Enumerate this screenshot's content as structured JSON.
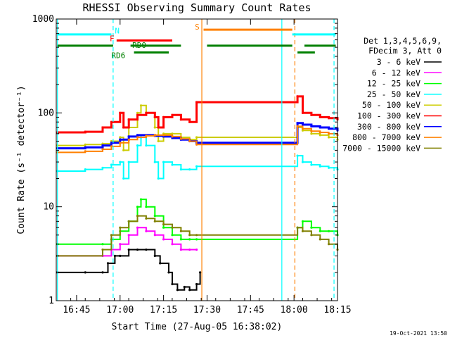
{
  "chart_data": {
    "type": "line",
    "title": "RHESSI Observing Summary Count Rates",
    "xlabel": "Start Time (27-Aug-05 16:38:02)",
    "ylabel": "Count Rate (s⁻¹ detector⁻¹)",
    "y_scale": "log",
    "ylim": [
      1,
      1000
    ],
    "xlim_minutes": [
      16.633,
      18.25
    ],
    "y_ticks": [
      {
        "value": 1,
        "label": "1"
      },
      {
        "value": 10,
        "label": "10"
      },
      {
        "value": 100,
        "label": "100"
      },
      {
        "value": 1000,
        "label": "1000"
      }
    ],
    "x_ticks": [
      {
        "value": 16.75,
        "label": "16:45"
      },
      {
        "value": 17.0,
        "label": "17:00"
      },
      {
        "value": 17.25,
        "label": "17:15"
      },
      {
        "value": 17.5,
        "label": "17:30"
      },
      {
        "value": 17.75,
        "label": "17:45"
      },
      {
        "value": 18.0,
        "label": "18:00"
      },
      {
        "value": 18.25,
        "label": "18:15"
      }
    ],
    "legend_header": [
      "Det 1,3,4,5,6,9,",
      "FDecim 3, Att 0"
    ],
    "series": [
      {
        "name": "3 - 6 keV",
        "color": "#000000",
        "x": [
          16.64,
          16.8,
          16.9,
          16.93,
          16.97,
          17.0,
          17.05,
          17.1,
          17.15,
          17.2,
          17.23,
          17.28,
          17.3,
          17.33,
          17.37,
          17.4,
          17.44,
          17.46
        ],
        "y": [
          2.0,
          2.0,
          2.0,
          2.5,
          3.0,
          3.0,
          3.5,
          3.5,
          3.5,
          3.0,
          2.5,
          2.0,
          1.5,
          1.3,
          1.4,
          1.3,
          1.5,
          2.0
        ]
      },
      {
        "name": "6 - 12 keV",
        "color": "#ff00ff",
        "x": [
          16.64,
          16.9,
          16.95,
          17.0,
          17.05,
          17.1,
          17.15,
          17.2,
          17.25,
          17.3,
          17.35,
          17.4,
          17.44
        ],
        "y": [
          3.0,
          3.0,
          3.5,
          4.0,
          5.0,
          6.0,
          5.5,
          5.0,
          4.5,
          4.0,
          3.5,
          3.5,
          3.5
        ]
      },
      {
        "name": "12 - 25 keV",
        "color": "#00ff00",
        "x": [
          16.64,
          16.9,
          16.95,
          17.0,
          17.05,
          17.1,
          17.12,
          17.15,
          17.2,
          17.25,
          17.3,
          17.35,
          17.4,
          17.44,
          18.02,
          18.05,
          18.1,
          18.15,
          18.2,
          18.25
        ],
        "y": [
          4.0,
          4.0,
          4.5,
          5.5,
          7.0,
          10.0,
          12.0,
          10.0,
          8.0,
          6.0,
          5.0,
          4.5,
          4.5,
          4.5,
          6.0,
          7.0,
          6.0,
          5.5,
          5.5,
          5.0
        ]
      },
      {
        "name": "25 - 50 keV",
        "color": "#00ffff",
        "x": [
          16.64,
          16.8,
          16.9,
          16.95,
          17.0,
          17.02,
          17.05,
          17.1,
          17.12,
          17.15,
          17.2,
          17.22,
          17.25,
          17.3,
          17.35,
          17.4,
          17.44,
          18.02,
          18.05,
          18.1,
          18.15,
          18.2,
          18.25
        ],
        "y": [
          24,
          25,
          26,
          28,
          30,
          20,
          30,
          45,
          55,
          45,
          30,
          20,
          30,
          28,
          25,
          25,
          27,
          35,
          30,
          28,
          27,
          26,
          25
        ]
      },
      {
        "name": "50 - 100 keV",
        "color": "#cccc00",
        "x": [
          16.64,
          16.8,
          16.9,
          16.95,
          17.0,
          17.02,
          17.05,
          17.1,
          17.12,
          17.15,
          17.2,
          17.22,
          17.25,
          17.3,
          17.35,
          17.4,
          17.44,
          18.02,
          18.05,
          18.1,
          18.15,
          18.2,
          18.25
        ],
        "y": [
          45,
          46,
          47,
          50,
          55,
          40,
          70,
          100,
          120,
          100,
          70,
          50,
          60,
          60,
          55,
          52,
          55,
          70,
          65,
          60,
          58,
          55,
          52
        ]
      },
      {
        "name": "100 - 300 keV",
        "color": "#ff0000",
        "x": [
          16.64,
          16.8,
          16.9,
          16.95,
          17.0,
          17.02,
          17.05,
          17.1,
          17.15,
          17.2,
          17.22,
          17.25,
          17.3,
          17.35,
          17.4,
          17.44,
          18.02,
          18.05,
          18.1,
          18.15,
          18.2,
          18.25
        ],
        "y": [
          62,
          63,
          70,
          80,
          100,
          70,
          85,
          95,
          100,
          90,
          70,
          90,
          95,
          85,
          80,
          130,
          150,
          100,
          95,
          90,
          88,
          85
        ]
      },
      {
        "name": "300 - 800 keV",
        "color": "#0000ff",
        "x": [
          16.64,
          16.8,
          16.9,
          16.95,
          17.0,
          17.05,
          17.1,
          17.15,
          17.2,
          17.25,
          17.3,
          17.35,
          17.4,
          17.44,
          18.02,
          18.05,
          18.1,
          18.15,
          18.2,
          18.25
        ],
        "y": [
          42,
          43,
          45,
          48,
          52,
          56,
          58,
          58,
          57,
          56,
          54,
          52,
          50,
          48,
          78,
          75,
          72,
          70,
          68,
          65
        ]
      },
      {
        "name": "800 - 7000 keV",
        "color": "#ff8000",
        "x": [
          16.64,
          16.8,
          16.9,
          16.95,
          17.0,
          17.05,
          17.1,
          17.15,
          17.2,
          17.25,
          17.3,
          17.35,
          17.4,
          17.44,
          18.02,
          18.05,
          18.1,
          18.15,
          18.2,
          18.25
        ],
        "y": [
          38,
          39,
          41,
          44,
          48,
          52,
          55,
          57,
          58,
          58,
          56,
          53,
          50,
          46,
          72,
          68,
          64,
          62,
          60,
          58
        ]
      },
      {
        "name": "7000 - 15000 keV",
        "color": "#808000",
        "x": [
          16.64,
          16.9,
          16.95,
          17.0,
          17.05,
          17.1,
          17.15,
          17.2,
          17.25,
          17.3,
          17.35,
          17.4,
          17.44,
          18.02,
          18.05,
          18.1,
          18.15,
          18.2,
          18.25
        ],
        "y": [
          3.0,
          3.5,
          5.0,
          6.0,
          7.0,
          8.0,
          7.5,
          7.0,
          6.5,
          6.0,
          5.5,
          5.0,
          5.0,
          6.0,
          5.5,
          5.0,
          4.5,
          4.0,
          3.5
        ]
      }
    ],
    "vertical_lines": [
      {
        "x": 16.64,
        "color": "#00ffff",
        "style": "solid"
      },
      {
        "x": 16.96,
        "color": "#00ffff",
        "style": "dashed"
      },
      {
        "x": 17.47,
        "color": "#ff8000",
        "style": "solid"
      },
      {
        "x": 17.93,
        "color": "#00ffff",
        "style": "solid"
      },
      {
        "x": 18.005,
        "color": "#ff8000",
        "style": "dashed"
      },
      {
        "x": 18.23,
        "color": "#00ffff",
        "style": "dashed"
      }
    ],
    "segments": [
      {
        "label": "N",
        "color": "#00ffff",
        "y": 685,
        "label_y": 750,
        "label_x": 16.97,
        "ranges": [
          [
            16.64,
            16.95
          ],
          [
            17.99,
            18.24
          ]
        ]
      },
      {
        "label": "F",
        "color": "#ff0000",
        "y": 590,
        "label_y": 620,
        "label_x": 16.94,
        "ranges": [
          [
            16.98,
            17.3
          ]
        ]
      },
      {
        "label": "S",
        "color": "#ff8000",
        "y": 770,
        "label_y": 830,
        "label_x": 17.43,
        "ranges": [
          [
            17.48,
            17.99
          ]
        ]
      },
      {
        "label": "RD0",
        "color": "#008000",
        "y": 520,
        "label_y": 530,
        "label_x": 17.07,
        "ranges": [
          [
            16.64,
            16.96
          ],
          [
            17.06,
            17.35
          ],
          [
            17.5,
            17.99
          ],
          [
            18.06,
            18.24
          ]
        ]
      },
      {
        "label": "RD6",
        "color": "#008000",
        "y": 440,
        "label_y": 410,
        "label_x": 16.95,
        "ranges": [
          [
            17.08,
            17.28
          ],
          [
            18.02,
            18.12
          ]
        ]
      }
    ],
    "legend_placement": "right"
  },
  "footer": {
    "date": "19-Oct-2021 13:50"
  }
}
